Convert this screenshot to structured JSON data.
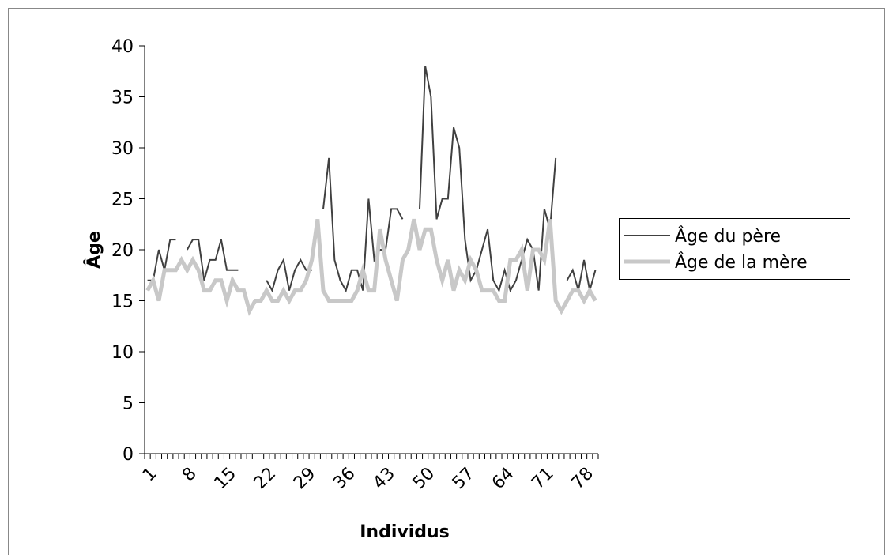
{
  "chart_data": {
    "type": "line",
    "x_label": "Individus",
    "y_label": "Âge",
    "categories": [
      1,
      null,
      null,
      null,
      null,
      null,
      null,
      8,
      null,
      null,
      null,
      null,
      null,
      null,
      15,
      null,
      null,
      null,
      null,
      null,
      null,
      22,
      null,
      null,
      null,
      null,
      null,
      null,
      29,
      null,
      null,
      null,
      null,
      null,
      null,
      36,
      null,
      null,
      null,
      null,
      null,
      null,
      43,
      null,
      null,
      null,
      null,
      null,
      null,
      50,
      null,
      null,
      null,
      null,
      null,
      null,
      57,
      null,
      null,
      null,
      null,
      null,
      null,
      64,
      null,
      null,
      null,
      null,
      null,
      null,
      71,
      null,
      null,
      null,
      null,
      null,
      null,
      78,
      null,
      null
    ],
    "series": [
      {
        "name": "Âge du père",
        "color": "#404040",
        "width": 2,
        "values": [
          17,
          17,
          20,
          18,
          21,
          21,
          null,
          20,
          21,
          21,
          17,
          19,
          19,
          21,
          18,
          18,
          18,
          null,
          null,
          null,
          null,
          17,
          16,
          18,
          19,
          16,
          18,
          19,
          18,
          18,
          null,
          24,
          29,
          19,
          17,
          16,
          18,
          18,
          16,
          25,
          19,
          20,
          20,
          24,
          24,
          23,
          null,
          null,
          24,
          38,
          35,
          23,
          25,
          25,
          32,
          30,
          21,
          17,
          18,
          20,
          22,
          17,
          16,
          18,
          16,
          17,
          19,
          21,
          20,
          16,
          24,
          22,
          29,
          null,
          17,
          18,
          16,
          19,
          16,
          18
        ]
      },
      {
        "name": "Âge de la mère",
        "color": "#c8c8c8",
        "width": 5,
        "values": [
          16,
          17,
          15,
          18,
          18,
          18,
          19,
          18,
          19,
          18,
          16,
          16,
          17,
          17,
          15,
          17,
          16,
          16,
          14,
          15,
          15,
          16,
          15,
          15,
          16,
          15,
          16,
          16,
          17,
          19,
          23,
          16,
          15,
          15,
          15,
          15,
          15,
          16,
          18,
          16,
          16,
          22,
          19,
          17,
          15,
          19,
          20,
          23,
          20,
          22,
          22,
          19,
          17,
          19,
          16,
          18,
          17,
          19,
          18,
          16,
          16,
          16,
          15,
          15,
          19,
          19,
          20,
          16,
          20,
          20,
          19,
          23,
          15,
          14,
          15,
          16,
          16,
          15,
          16,
          15
        ]
      }
    ],
    "ylim": [
      0,
      40
    ],
    "yticks": [
      0,
      5,
      10,
      15,
      20,
      25,
      30,
      35,
      40
    ],
    "legend": "right"
  }
}
